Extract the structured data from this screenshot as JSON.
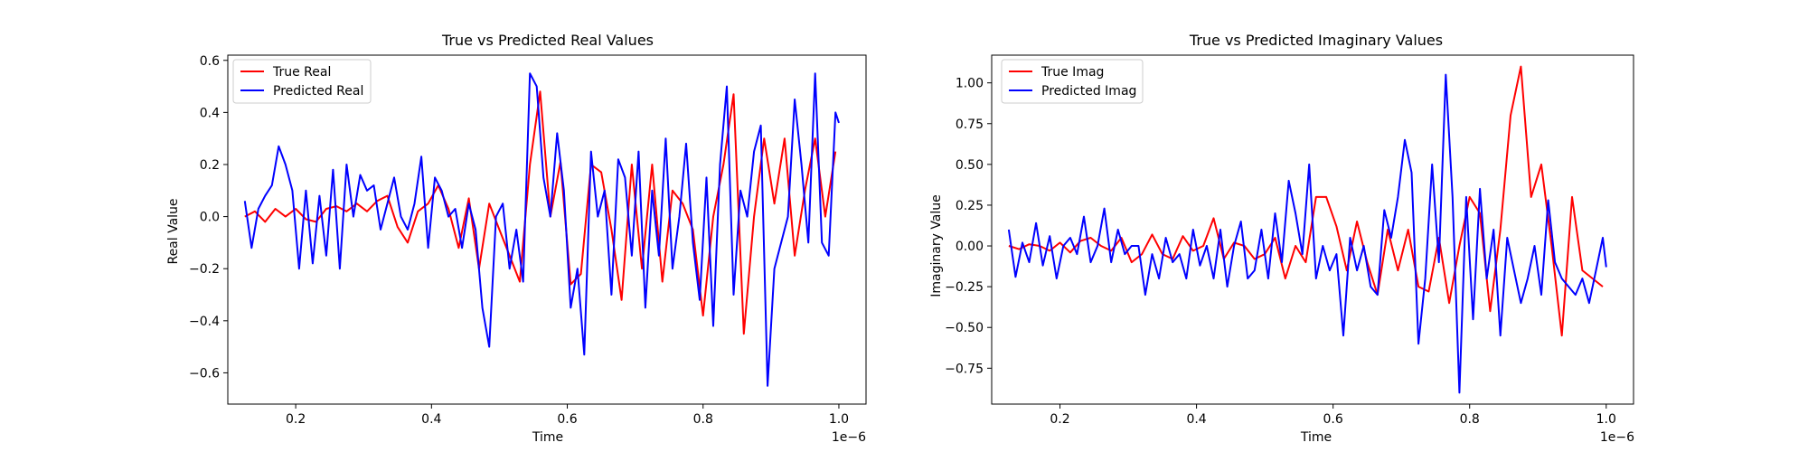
{
  "chart_data": [
    {
      "type": "line",
      "title": "True vs Predicted Real Values",
      "xlabel": "Time",
      "ylabel": "Real Value",
      "x_offset_label": "1e−6",
      "xlim": [
        0.1,
        1.04
      ],
      "ylim": [
        -0.72,
        0.62
      ],
      "xticks": [
        0.2,
        0.4,
        0.6,
        0.8,
        1.0
      ],
      "xtick_labels": [
        "0.2",
        "0.4",
        "0.6",
        "0.8",
        "1.0"
      ],
      "yticks": [
        -0.6,
        -0.4,
        -0.2,
        0.0,
        0.2,
        0.4,
        0.6
      ],
      "ytick_labels": [
        "−0.6",
        "−0.4",
        "−0.2",
        "0.0",
        "0.2",
        "0.4",
        "0.6"
      ],
      "legend_position": "upper-left",
      "series": [
        {
          "name": "True Real",
          "color": "#ff0000",
          "x": [
            0.125,
            0.14,
            0.155,
            0.17,
            0.185,
            0.2,
            0.215,
            0.23,
            0.245,
            0.26,
            0.275,
            0.29,
            0.305,
            0.32,
            0.335,
            0.35,
            0.365,
            0.38,
            0.395,
            0.41,
            0.425,
            0.44,
            0.455,
            0.47,
            0.485,
            0.5,
            0.515,
            0.53,
            0.545,
            0.56,
            0.575,
            0.59,
            0.605,
            0.62,
            0.635,
            0.65,
            0.665,
            0.68,
            0.695,
            0.71,
            0.725,
            0.74,
            0.755,
            0.77,
            0.785,
            0.8,
            0.815,
            0.83,
            0.845,
            0.86,
            0.875,
            0.89,
            0.905,
            0.92,
            0.935,
            0.95,
            0.965,
            0.98,
            0.995
          ],
          "y": [
            0.0,
            0.02,
            -0.02,
            0.03,
            0.0,
            0.03,
            -0.01,
            -0.02,
            0.03,
            0.04,
            0.02,
            0.05,
            0.02,
            0.06,
            0.08,
            -0.04,
            -0.1,
            0.02,
            0.05,
            0.12,
            0.03,
            -0.12,
            0.07,
            -0.2,
            0.05,
            -0.05,
            -0.15,
            -0.25,
            0.2,
            0.48,
            0.0,
            0.21,
            -0.26,
            -0.22,
            0.2,
            0.17,
            -0.05,
            -0.32,
            0.2,
            -0.2,
            0.2,
            -0.25,
            0.1,
            0.05,
            -0.05,
            -0.38,
            0.0,
            0.2,
            0.47,
            -0.45,
            0.0,
            0.3,
            0.05,
            0.3,
            -0.15,
            0.1,
            0.3,
            0.0,
            0.25
          ]
        },
        {
          "name": "Predicted Real",
          "color": "#0000ff",
          "x": [
            0.125,
            0.135,
            0.145,
            0.155,
            0.165,
            0.175,
            0.185,
            0.195,
            0.205,
            0.215,
            0.225,
            0.235,
            0.245,
            0.255,
            0.265,
            0.275,
            0.285,
            0.295,
            0.305,
            0.315,
            0.325,
            0.335,
            0.345,
            0.355,
            0.365,
            0.375,
            0.385,
            0.395,
            0.405,
            0.415,
            0.425,
            0.435,
            0.445,
            0.455,
            0.465,
            0.475,
            0.485,
            0.495,
            0.505,
            0.515,
            0.525,
            0.535,
            0.545,
            0.555,
            0.565,
            0.575,
            0.585,
            0.595,
            0.605,
            0.615,
            0.625,
            0.635,
            0.645,
            0.655,
            0.665,
            0.675,
            0.685,
            0.695,
            0.705,
            0.715,
            0.725,
            0.735,
            0.745,
            0.755,
            0.765,
            0.775,
            0.785,
            0.795,
            0.805,
            0.815,
            0.825,
            0.835,
            0.845,
            0.855,
            0.865,
            0.875,
            0.885,
            0.895,
            0.905,
            0.915,
            0.925,
            0.935,
            0.945,
            0.955,
            0.965,
            0.975,
            0.985,
            0.995,
            1.0
          ],
          "y": [
            0.06,
            -0.12,
            0.03,
            0.08,
            0.12,
            0.27,
            0.2,
            0.1,
            -0.2,
            0.1,
            -0.18,
            0.08,
            -0.15,
            0.18,
            -0.2,
            0.2,
            0.0,
            0.16,
            0.1,
            0.12,
            -0.05,
            0.05,
            0.15,
            0.0,
            -0.05,
            0.05,
            0.23,
            -0.12,
            0.15,
            0.1,
            0.0,
            0.03,
            -0.12,
            0.05,
            -0.05,
            -0.35,
            -0.5,
            0.0,
            0.05,
            -0.2,
            -0.05,
            -0.25,
            0.55,
            0.5,
            0.15,
            0.0,
            0.32,
            0.1,
            -0.35,
            -0.2,
            -0.53,
            0.25,
            0.0,
            0.1,
            -0.3,
            0.22,
            0.15,
            -0.15,
            0.25,
            -0.35,
            0.1,
            -0.15,
            0.3,
            -0.2,
            0.0,
            0.28,
            -0.1,
            -0.32,
            0.15,
            -0.42,
            0.2,
            0.5,
            -0.3,
            0.1,
            0.0,
            0.25,
            0.35,
            -0.65,
            -0.2,
            -0.1,
            0.0,
            0.45,
            0.2,
            -0.1,
            0.55,
            -0.1,
            -0.15,
            0.4,
            0.36
          ]
        }
      ]
    },
    {
      "type": "line",
      "title": "True vs Predicted Imaginary Values",
      "xlabel": "Time",
      "ylabel": "Imaginary Value",
      "x_offset_label": "1e−6",
      "xlim": [
        0.1,
        1.04
      ],
      "ylim": [
        -0.97,
        1.17
      ],
      "xticks": [
        0.2,
        0.4,
        0.6,
        0.8,
        1.0
      ],
      "xtick_labels": [
        "0.2",
        "0.4",
        "0.6",
        "0.8",
        "1.0"
      ],
      "yticks": [
        -0.75,
        -0.5,
        -0.25,
        0.0,
        0.25,
        0.5,
        0.75,
        1.0
      ],
      "ytick_labels": [
        "−0.75",
        "−0.50",
        "−0.25",
        "0.00",
        "0.25",
        "0.50",
        "0.75",
        "1.00"
      ],
      "legend_position": "upper-left",
      "series": [
        {
          "name": "True Imag",
          "color": "#ff0000",
          "x": [
            0.125,
            0.14,
            0.155,
            0.17,
            0.185,
            0.2,
            0.215,
            0.23,
            0.245,
            0.26,
            0.275,
            0.29,
            0.305,
            0.32,
            0.335,
            0.35,
            0.365,
            0.38,
            0.395,
            0.41,
            0.425,
            0.44,
            0.455,
            0.47,
            0.485,
            0.5,
            0.515,
            0.53,
            0.545,
            0.56,
            0.575,
            0.59,
            0.605,
            0.62,
            0.635,
            0.65,
            0.665,
            0.68,
            0.695,
            0.71,
            0.725,
            0.74,
            0.755,
            0.77,
            0.785,
            0.8,
            0.815,
            0.83,
            0.845,
            0.86,
            0.875,
            0.89,
            0.905,
            0.92,
            0.935,
            0.95,
            0.965,
            0.98,
            0.995
          ],
          "y": [
            0.0,
            -0.02,
            0.01,
            0.0,
            -0.03,
            0.02,
            -0.04,
            0.03,
            0.05,
            0.0,
            -0.03,
            0.05,
            -0.1,
            -0.05,
            0.07,
            -0.05,
            -0.08,
            0.06,
            -0.03,
            0.0,
            0.17,
            -0.08,
            0.02,
            0.0,
            -0.08,
            -0.05,
            0.05,
            -0.2,
            0.0,
            -0.1,
            0.3,
            0.3,
            0.12,
            -0.15,
            0.15,
            -0.1,
            -0.3,
            0.1,
            -0.15,
            0.1,
            -0.25,
            -0.28,
            0.05,
            -0.35,
            0.0,
            0.3,
            0.2,
            -0.4,
            0.1,
            0.8,
            1.1,
            0.3,
            0.5,
            0.0,
            -0.55,
            0.3,
            -0.15,
            -0.2,
            -0.25
          ]
        },
        {
          "name": "Predicted Imag",
          "color": "#0000ff",
          "x": [
            0.125,
            0.135,
            0.145,
            0.155,
            0.165,
            0.175,
            0.185,
            0.195,
            0.205,
            0.215,
            0.225,
            0.235,
            0.245,
            0.255,
            0.265,
            0.275,
            0.285,
            0.295,
            0.305,
            0.315,
            0.325,
            0.335,
            0.345,
            0.355,
            0.365,
            0.375,
            0.385,
            0.395,
            0.405,
            0.415,
            0.425,
            0.435,
            0.445,
            0.455,
            0.465,
            0.475,
            0.485,
            0.495,
            0.505,
            0.515,
            0.525,
            0.535,
            0.545,
            0.555,
            0.565,
            0.575,
            0.585,
            0.595,
            0.605,
            0.615,
            0.625,
            0.635,
            0.645,
            0.655,
            0.665,
            0.675,
            0.685,
            0.695,
            0.705,
            0.715,
            0.725,
            0.735,
            0.745,
            0.755,
            0.765,
            0.775,
            0.785,
            0.795,
            0.805,
            0.815,
            0.825,
            0.835,
            0.845,
            0.855,
            0.865,
            0.875,
            0.885,
            0.895,
            0.905,
            0.915,
            0.925,
            0.935,
            0.945,
            0.955,
            0.965,
            0.975,
            0.985,
            0.995,
            1.0
          ],
          "y": [
            0.1,
            -0.19,
            0.02,
            -0.1,
            0.14,
            -0.12,
            0.06,
            -0.2,
            0.0,
            0.05,
            -0.05,
            0.18,
            -0.1,
            0.0,
            0.23,
            -0.1,
            0.1,
            -0.05,
            0.0,
            0.0,
            -0.3,
            -0.05,
            -0.2,
            0.05,
            -0.1,
            -0.05,
            -0.2,
            0.1,
            -0.12,
            0.0,
            -0.2,
            0.1,
            -0.25,
            0.0,
            0.15,
            -0.2,
            -0.15,
            0.1,
            -0.2,
            0.2,
            -0.1,
            0.4,
            0.2,
            -0.05,
            0.5,
            -0.2,
            0.0,
            -0.15,
            -0.05,
            -0.55,
            0.05,
            -0.15,
            0.0,
            -0.25,
            -0.3,
            0.22,
            0.05,
            0.3,
            0.65,
            0.45,
            -0.6,
            -0.2,
            0.5,
            -0.1,
            1.05,
            0.3,
            -0.9,
            0.3,
            -0.45,
            0.35,
            -0.2,
            0.1,
            -0.55,
            0.05,
            -0.15,
            -0.35,
            -0.2,
            0.0,
            -0.3,
            0.28,
            -0.1,
            -0.2,
            -0.25,
            -0.3,
            -0.2,
            -0.35,
            -0.15,
            0.05,
            -0.13
          ]
        }
      ]
    }
  ]
}
